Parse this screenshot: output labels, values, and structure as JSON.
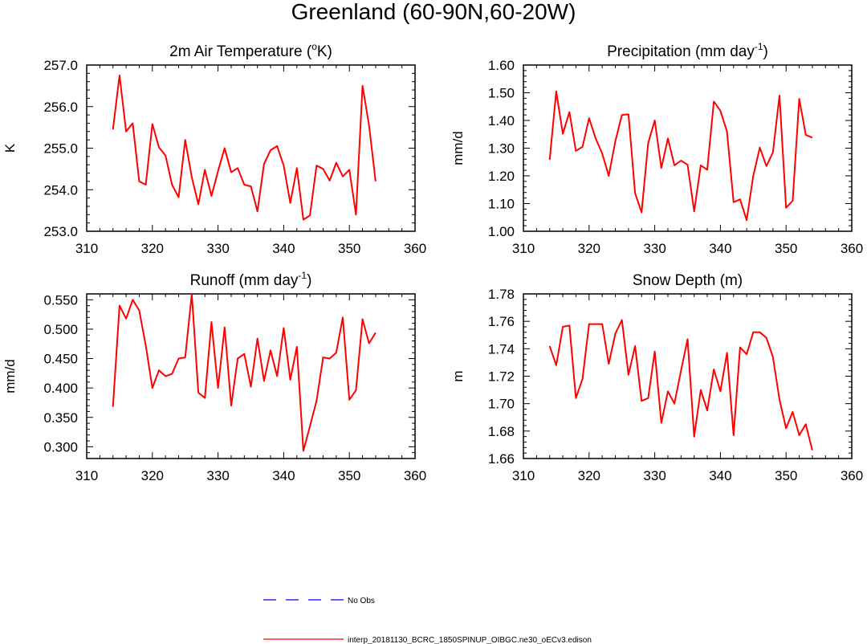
{
  "title": "Greenland (60-90N,60-20W)",
  "colors": {
    "model": "#ff0000",
    "obs": "#0000ff",
    "axis": "#000000"
  },
  "chart_data": [
    {
      "type": "line",
      "title": "2m Air Temperature",
      "title_unit_pre": "(",
      "title_sup": "o",
      "title_unit_post": "K)",
      "xlabel": "",
      "ylabel": "K",
      "xlim": [
        310,
        360
      ],
      "ylim": [
        253.0,
        257.0
      ],
      "xticks": [
        "310",
        "320",
        "330",
        "340",
        "350",
        "360"
      ],
      "yticks": [
        "253.0",
        "254.0",
        "255.0",
        "256.0",
        "257.0"
      ],
      "x": [
        314,
        315,
        316,
        317,
        318,
        319,
        320,
        321,
        322,
        323,
        324,
        325,
        326,
        327,
        328,
        329,
        330,
        331,
        332,
        333,
        334,
        335,
        336,
        337,
        338,
        339,
        340,
        341,
        342,
        343,
        344,
        345,
        346,
        347,
        348,
        349,
        350,
        351,
        352,
        353,
        354
      ],
      "values": [
        255.45,
        256.75,
        255.4,
        255.6,
        254.2,
        254.12,
        255.58,
        255.02,
        254.82,
        254.12,
        253.82,
        255.2,
        254.3,
        253.65,
        254.48,
        253.85,
        254.45,
        255.0,
        254.42,
        254.52,
        254.12,
        254.08,
        253.48,
        254.62,
        254.95,
        255.05,
        254.58,
        253.68,
        254.52,
        253.28,
        253.38,
        254.58,
        254.5,
        254.22,
        254.65,
        254.32,
        254.48,
        253.4,
        256.5,
        255.55,
        254.2
      ]
    },
    {
      "type": "line",
      "title": "Precipitation",
      "title_unit_pre": "(mm day",
      "title_sup": "-1",
      "title_unit_post": ")",
      "xlabel": "",
      "ylabel": "mm/d",
      "xlim": [
        310,
        360
      ],
      "ylim": [
        1.0,
        1.6
      ],
      "xticks": [
        "310",
        "320",
        "330",
        "340",
        "350",
        "360"
      ],
      "yticks": [
        "1.00",
        "1.10",
        "1.20",
        "1.30",
        "1.40",
        "1.50",
        "1.60"
      ],
      "x": [
        314,
        315,
        316,
        317,
        318,
        319,
        320,
        321,
        322,
        323,
        324,
        325,
        326,
        327,
        328,
        329,
        330,
        331,
        332,
        333,
        334,
        335,
        336,
        337,
        338,
        339,
        340,
        341,
        342,
        343,
        344,
        345,
        346,
        347,
        348,
        349,
        350,
        351,
        352,
        353,
        354
      ],
      "values": [
        1.258,
        1.505,
        1.352,
        1.43,
        1.29,
        1.305,
        1.408,
        1.335,
        1.28,
        1.2,
        1.325,
        1.42,
        1.422,
        1.138,
        1.068,
        1.318,
        1.4,
        1.228,
        1.335,
        1.238,
        1.255,
        1.24,
        1.072,
        1.238,
        1.222,
        1.468,
        1.435,
        1.36,
        1.105,
        1.115,
        1.04,
        1.2,
        1.302,
        1.235,
        1.285,
        1.49,
        1.085,
        1.11,
        1.478,
        1.348,
        1.338
      ]
    },
    {
      "type": "line",
      "title": "Runoff",
      "title_unit_pre": "(mm day",
      "title_sup": "-1",
      "title_unit_post": ")",
      "xlabel": "",
      "ylabel": "mm/d",
      "xlim": [
        310,
        360
      ],
      "ylim": [
        0.28,
        0.56
      ],
      "xticks": [
        "310",
        "320",
        "330",
        "340",
        "350",
        "360"
      ],
      "yticks": [
        "0.300",
        "0.350",
        "0.400",
        "0.450",
        "0.500",
        "0.550"
      ],
      "x": [
        314,
        315,
        316,
        317,
        318,
        319,
        320,
        321,
        322,
        323,
        324,
        325,
        326,
        327,
        328,
        329,
        330,
        331,
        332,
        333,
        334,
        335,
        336,
        337,
        338,
        339,
        340,
        341,
        342,
        343,
        344,
        345,
        346,
        347,
        348,
        349,
        350,
        351,
        352,
        353,
        354
      ],
      "values": [
        0.368,
        0.54,
        0.518,
        0.55,
        0.532,
        0.472,
        0.4,
        0.43,
        0.42,
        0.424,
        0.45,
        0.452,
        0.56,
        0.392,
        0.383,
        0.512,
        0.4,
        0.503,
        0.37,
        0.45,
        0.458,
        0.402,
        0.484,
        0.412,
        0.464,
        0.42,
        0.502,
        0.414,
        0.47,
        0.293,
        0.335,
        0.378,
        0.452,
        0.45,
        0.46,
        0.52,
        0.38,
        0.396,
        0.517,
        0.476,
        0.494
      ]
    },
    {
      "type": "line",
      "title": "Snow Depth",
      "title_unit_pre": "(m)",
      "title_sup": "",
      "title_unit_post": "",
      "xlabel": "",
      "ylabel": "m",
      "xlim": [
        310,
        360
      ],
      "ylim": [
        1.66,
        1.78
      ],
      "xticks": [
        "310",
        "320",
        "330",
        "340",
        "350",
        "360"
      ],
      "yticks": [
        "1.66",
        "1.68",
        "1.70",
        "1.72",
        "1.74",
        "1.76",
        "1.78"
      ],
      "x": [
        314,
        315,
        316,
        317,
        318,
        319,
        320,
        321,
        322,
        323,
        324,
        325,
        326,
        327,
        328,
        329,
        330,
        331,
        332,
        333,
        334,
        335,
        336,
        337,
        338,
        339,
        340,
        341,
        342,
        343,
        344,
        345,
        346,
        347,
        348,
        349,
        350,
        351,
        352,
        353,
        354
      ],
      "values": [
        1.742,
        1.728,
        1.756,
        1.757,
        1.704,
        1.718,
        1.758,
        1.758,
        1.758,
        1.729,
        1.751,
        1.761,
        1.721,
        1.742,
        1.702,
        1.704,
        1.738,
        1.686,
        1.709,
        1.7,
        1.724,
        1.747,
        1.676,
        1.71,
        1.695,
        1.725,
        1.709,
        1.737,
        1.677,
        1.741,
        1.736,
        1.752,
        1.752,
        1.748,
        1.734,
        1.703,
        1.682,
        1.694,
        1.677,
        1.685,
        1.666
      ]
    }
  ],
  "legend": [
    {
      "label": "No Obs",
      "style": "dashed",
      "series": "obs"
    },
    {
      "label": "interp_20181130_BCRC_1850SPINUP_OIBGC.ne30_oECv3.edison",
      "style": "solid",
      "series": "model"
    }
  ]
}
